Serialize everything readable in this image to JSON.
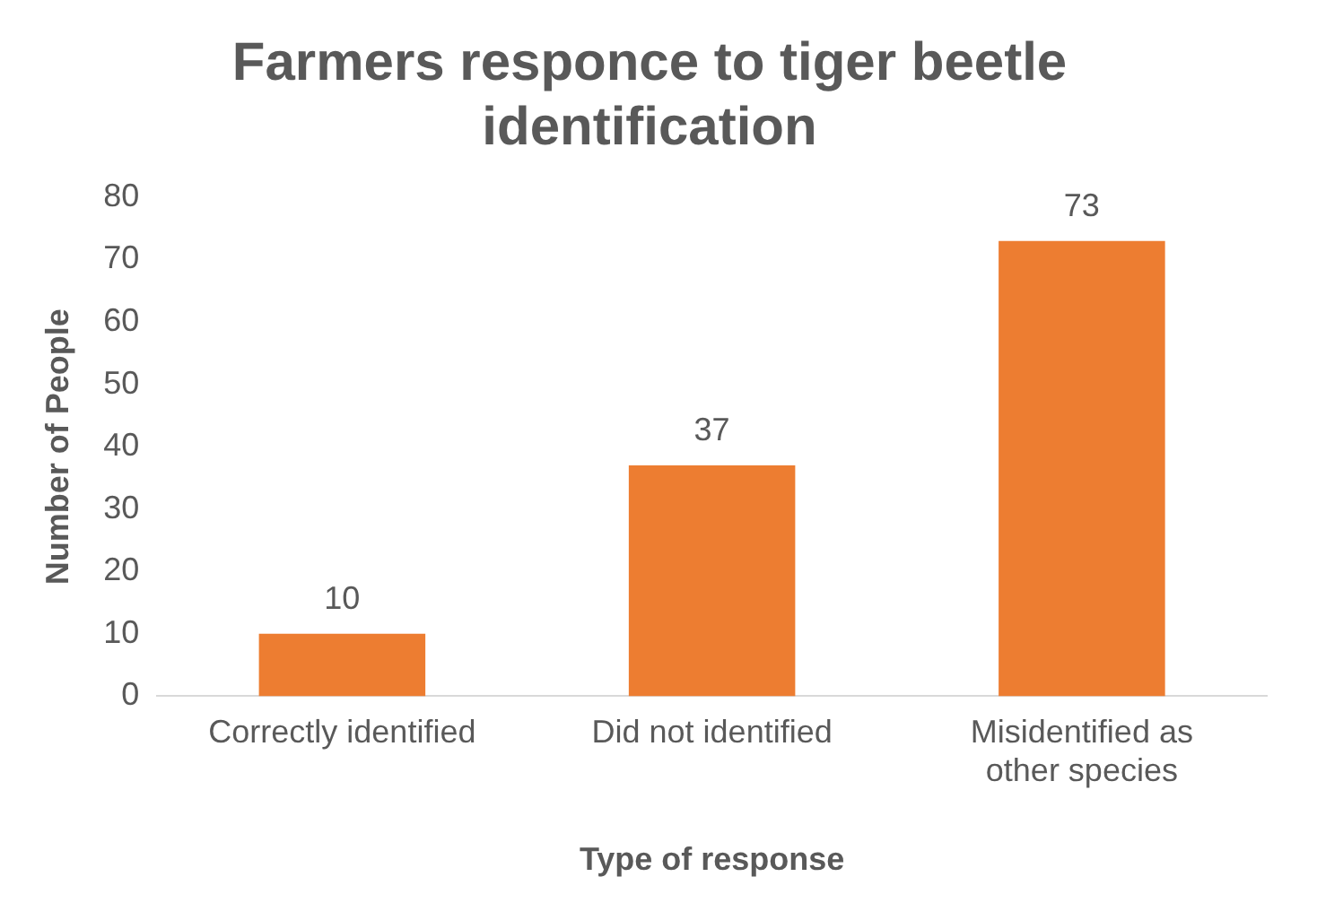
{
  "chart_data": {
    "type": "bar",
    "title": "Farmers responce to tiger beetle identification",
    "xlabel": "Type of response",
    "ylabel": "Number of People",
    "categories": [
      "Correctly identified",
      "Did not identified",
      "Misidentified as other species"
    ],
    "values": [
      10,
      37,
      73
    ],
    "color": "#ed7d31",
    "ylim": [
      0,
      80
    ],
    "yticks": [
      0,
      10,
      20,
      30,
      40,
      50,
      60,
      70,
      80
    ],
    "grid": false,
    "legend": false,
    "data_labels": true
  }
}
